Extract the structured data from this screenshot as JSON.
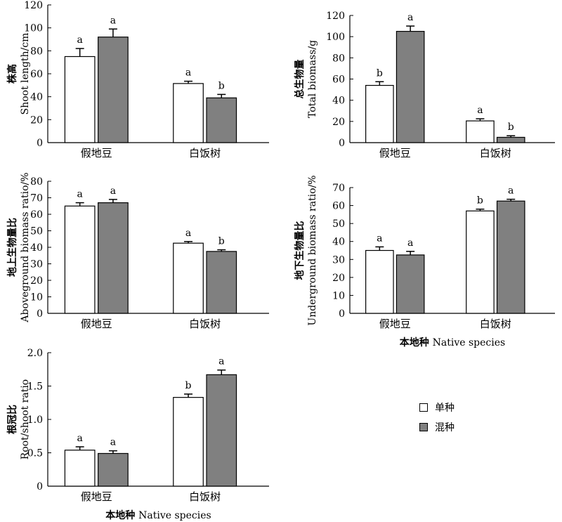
{
  "chart_data": [
    {
      "type": "bar",
      "ylabel_cn": "株高",
      "ylabel_en": "Shoot length/cm",
      "xlabel": "",
      "categories": [
        "假地豆",
        "白饭树"
      ],
      "series": [
        {
          "name": "单种",
          "values": [
            75,
            51.5
          ],
          "errors": [
            7,
            2
          ]
        },
        {
          "name": "混种",
          "values": [
            92,
            39
          ],
          "errors": [
            7,
            3
          ]
        }
      ],
      "letters": [
        [
          "a",
          "a"
        ],
        [
          "a",
          "b"
        ]
      ],
      "ylim": [
        0,
        120
      ],
      "yticks": [
        "0",
        "20",
        "40",
        "60",
        "80",
        "100",
        "120"
      ]
    },
    {
      "type": "bar",
      "ylabel_cn": "总生物量",
      "ylabel_en": "Total biomass/g",
      "xlabel": "",
      "categories": [
        "假地豆",
        "白饭树"
      ],
      "series": [
        {
          "name": "单种",
          "values": [
            54,
            20.5
          ],
          "errors": [
            3.5,
            2
          ]
        },
        {
          "name": "混种",
          "values": [
            105,
            5
          ],
          "errors": [
            5,
            1.5
          ]
        }
      ],
      "letters": [
        [
          "b",
          "a"
        ],
        [
          "a",
          "b"
        ]
      ],
      "ylim": [
        0,
        120
      ],
      "yticks": [
        "0",
        "20",
        "40",
        "60",
        "80",
        "100",
        "120"
      ]
    },
    {
      "type": "bar",
      "ylabel_cn": "地上生物量比",
      "ylabel_en": "Aboveground biomass ratio/%",
      "xlabel": "",
      "categories": [
        "假地豆",
        "白饭树"
      ],
      "series": [
        {
          "name": "单种",
          "values": [
            65,
            42.5
          ],
          "errors": [
            2,
            1
          ]
        },
        {
          "name": "混种",
          "values": [
            67,
            37.5
          ],
          "errors": [
            2,
            1
          ]
        }
      ],
      "letters": [
        [
          "a",
          "a"
        ],
        [
          "a",
          "b"
        ]
      ],
      "ylim": [
        0,
        80
      ],
      "yticks": [
        "0",
        "10",
        "20",
        "30",
        "40",
        "50",
        "60",
        "70",
        "80"
      ]
    },
    {
      "type": "bar",
      "ylabel_cn": "地下生物量比",
      "ylabel_en": "Underground biomass ratio/%",
      "xlabel_cn": "本地种",
      "xlabel_en": "Native species",
      "categories": [
        "假地豆",
        "白饭树"
      ],
      "series": [
        {
          "name": "单种",
          "values": [
            35,
            57
          ],
          "errors": [
            2,
            1
          ]
        },
        {
          "name": "混种",
          "values": [
            32.5,
            62.5
          ],
          "errors": [
            2,
            1
          ]
        }
      ],
      "letters": [
        [
          "a",
          "b"
        ],
        [
          "a",
          "a"
        ]
      ],
      "ylim": [
        0,
        70
      ],
      "yticks": [
        "0",
        "10",
        "20",
        "30",
        "40",
        "50",
        "60",
        "70"
      ]
    },
    {
      "type": "bar",
      "ylabel_cn": "根冠比",
      "ylabel_en": "Root/shoot ratio",
      "xlabel_cn": "本地种",
      "xlabel_en": "Native species",
      "categories": [
        "假地豆",
        "白饭树"
      ],
      "series": [
        {
          "name": "单种",
          "values": [
            0.54,
            1.33
          ],
          "errors": [
            0.05,
            0.05
          ]
        },
        {
          "name": "混种",
          "values": [
            0.49,
            1.67
          ],
          "errors": [
            0.04,
            0.07
          ]
        }
      ],
      "letters": [
        [
          "a",
          "b"
        ],
        [
          "a",
          "a"
        ]
      ],
      "ylim": [
        0,
        2.0
      ],
      "yticks": [
        "0",
        "0.5",
        "1.0",
        "1.5",
        "2.0"
      ]
    }
  ],
  "legend": [
    {
      "label": "单种",
      "color": "#ffffff"
    },
    {
      "label": "混种",
      "color": "#808080"
    }
  ]
}
